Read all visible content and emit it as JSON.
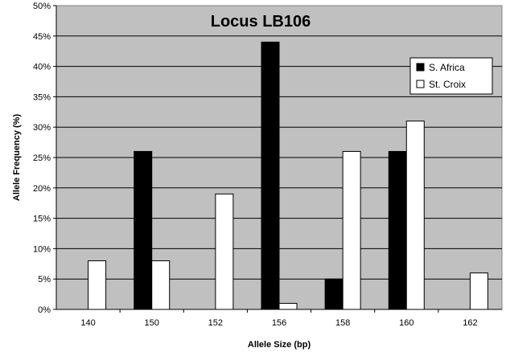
{
  "chart_data": {
    "type": "bar",
    "title": "Locus LB106",
    "xlabel": "Allele Size (bp)",
    "ylabel": "Allele Frequency (%)",
    "categories": [
      "140",
      "150",
      "152",
      "156",
      "158",
      "160",
      "162"
    ],
    "series": [
      {
        "name": "S. Africa",
        "values": [
          0,
          26,
          0,
          44,
          5,
          26,
          0
        ],
        "color": "#000000"
      },
      {
        "name": "St. Croix",
        "values": [
          8,
          8,
          19,
          1,
          26,
          31,
          6
        ],
        "color": "#ffffff"
      }
    ],
    "ylim": [
      0,
      50
    ],
    "yticks": [
      "0%",
      "5%",
      "10%",
      "15%",
      "20%",
      "25%",
      "30%",
      "35%",
      "40%",
      "45%",
      "50%"
    ],
    "grid": true,
    "legend_position": "top-right",
    "plot_background": "#c0c0c0"
  }
}
